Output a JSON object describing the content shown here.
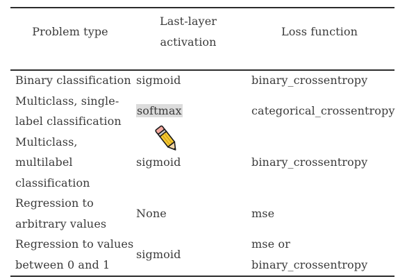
{
  "table": {
    "headers": {
      "problem_type": "Problem type",
      "activation_line1": "Last-layer",
      "activation_line2": "activation",
      "loss": "Loss function"
    },
    "rows": [
      {
        "problem": [
          "Binary classification"
        ],
        "activation": "sigmoid",
        "loss": [
          "binary_crossentropy"
        ]
      },
      {
        "problem": [
          "Multiclass, single-",
          "label classification"
        ],
        "activation": "softmax",
        "loss": [
          "categorical_crossentropy"
        ]
      },
      {
        "problem": [
          "Multiclass,",
          "multilabel",
          "classification"
        ],
        "activation": "sigmoid",
        "loss": [
          "binary_crossentropy"
        ]
      },
      {
        "problem": [
          "Regression to",
          "arbitrary values"
        ],
        "activation": "None",
        "loss": [
          "mse"
        ]
      },
      {
        "problem": [
          "Regression to values",
          "between 0 and 1"
        ],
        "activation": "sigmoid",
        "loss": [
          "mse or",
          "binary_crossentropy"
        ]
      }
    ]
  },
  "cursor": {
    "icon": "pencil-icon"
  },
  "colors": {
    "text": "#3a3a3a",
    "rule": "#2b2b2b",
    "highlight": "#dcdcdc"
  }
}
